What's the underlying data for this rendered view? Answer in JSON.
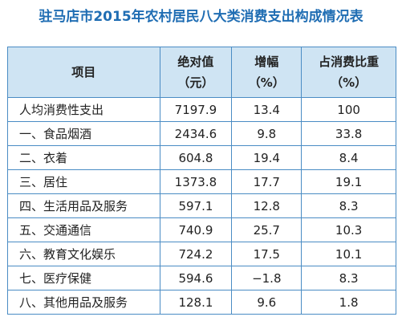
{
  "title": "驻马店市2015年农村居民八大类消费支出构成情况表",
  "table": {
    "header": [
      [
        "项目"
      ],
      [
        "绝对值",
        "（元）"
      ],
      [
        "增幅",
        "（%）"
      ],
      [
        "占消费比重",
        "（%）"
      ]
    ],
    "rows": [
      [
        "人均消费性支出",
        "7197.9",
        "13.4",
        "100"
      ],
      [
        "一、食品烟酒",
        "2434.6",
        "9.8",
        "33.8"
      ],
      [
        "二、衣着",
        "604.8",
        "19.4",
        "8.4"
      ],
      [
        "三、居住",
        "1373.8",
        "17.7",
        "19.1"
      ],
      [
        "四、生活用品及服务",
        "597.1",
        "12.8",
        "8.3"
      ],
      [
        "五、交通通信",
        "740.9",
        "25.7",
        "10.3"
      ],
      [
        "六、教育文化娱乐",
        "724.2",
        "17.5",
        "10.1"
      ],
      [
        "七、医疗保健",
        "594.6",
        "−1.8",
        "8.3"
      ],
      [
        "八、其他用品及服务",
        "128.1",
        "9.6",
        "1.8"
      ]
    ]
  }
}
